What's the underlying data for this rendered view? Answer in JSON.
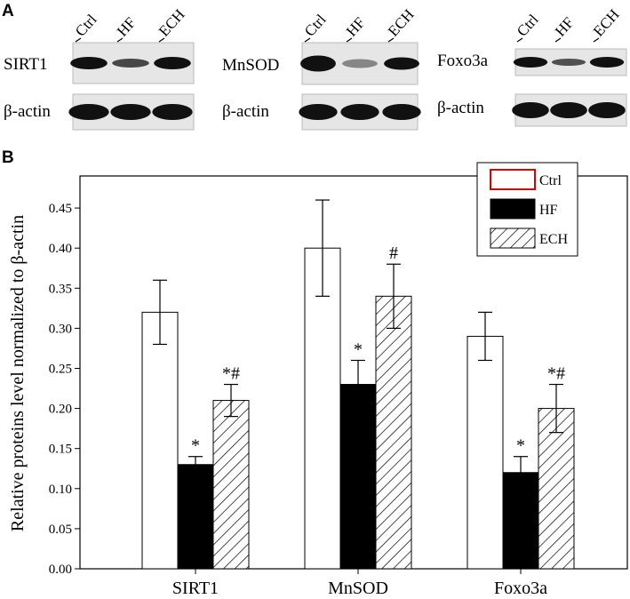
{
  "panel_labels": [
    "A",
    "B"
  ],
  "blots": [
    {
      "protein": "SIRT1",
      "loading": "β-actin",
      "lanes": [
        "Ctrl",
        "HF",
        "ECH"
      ]
    },
    {
      "protein": "MnSOD",
      "loading": "β-actin",
      "lanes": [
        "Ctrl",
        "HF",
        "ECH"
      ]
    },
    {
      "protein": "Foxo3a",
      "loading": "β-actin",
      "lanes": [
        "Ctrl",
        "HF",
        "ECH"
      ]
    }
  ],
  "chart_data": {
    "type": "bar",
    "y_label": "Relative proteins level normalized to β-actin",
    "categories": [
      "SIRT1",
      "MnSOD",
      "Foxo3a"
    ],
    "series": [
      {
        "name": "Ctrl",
        "color": "#ffffff",
        "values": [
          0.32,
          0.4,
          0.29
        ],
        "errors": [
          0.04,
          0.06,
          0.03
        ]
      },
      {
        "name": "HF",
        "color": "#000000",
        "values": [
          0.13,
          0.23,
          0.12
        ],
        "errors": [
          0.01,
          0.03,
          0.02
        ],
        "annotations": [
          "*",
          "*",
          "*"
        ]
      },
      {
        "name": "ECH",
        "color": "hatch",
        "values": [
          0.21,
          0.34,
          0.2
        ],
        "errors": [
          0.02,
          0.04,
          0.03
        ],
        "annotations": [
          "*#",
          "#",
          "*#"
        ]
      }
    ],
    "ylim": [
      0,
      0.49
    ],
    "yticks": [
      {
        "value": 0,
        "label": "0.00"
      },
      {
        "value": 0.05,
        "label": "0.05"
      },
      {
        "value": 0.1,
        "label": "0.10"
      },
      {
        "value": 0.15,
        "label": "0.15"
      },
      {
        "value": 0.2,
        "label": "0.20"
      },
      {
        "value": 0.25,
        "label": "0.25"
      },
      {
        "value": 0.3,
        "label": "0.30"
      },
      {
        "value": 0.35,
        "label": "0.35"
      },
      {
        "value": 0.4,
        "label": "0.40"
      },
      {
        "value": 0.45,
        "label": "0.45"
      }
    ],
    "legend_position": "upper right"
  }
}
